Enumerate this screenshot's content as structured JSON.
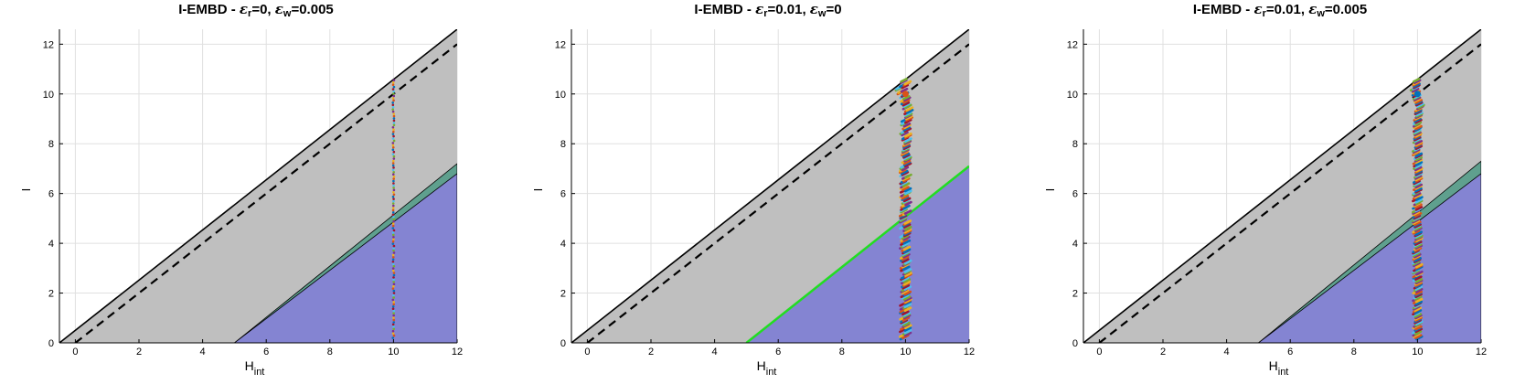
{
  "colors": {
    "gray_region": "#bfbfbf",
    "blue_region": "#8484d2",
    "green_band": "#5fa08e",
    "green_line": "#22dd22",
    "black": "#000000",
    "grid": "#e0e0e0",
    "trajectory_palette": [
      "#0072bd",
      "#d95319",
      "#edb120",
      "#7e2f8e",
      "#77ac30",
      "#4dbeee",
      "#a2142f"
    ]
  },
  "chart_data": [
    {
      "type": "scatter",
      "title_prefix": "I-EMBD - ",
      "title_params": [
        {
          "symbol": "ε",
          "sub": "r",
          "value": "=0"
        },
        {
          "symbol": "ε",
          "sub": "w",
          "value": "=0.005"
        }
      ],
      "xlabel": "H",
      "xlabel_sub": "int",
      "ylabel": "I",
      "xlim": [
        -0.5,
        12
      ],
      "ylim": [
        0,
        12.6
      ],
      "xticks": [
        "0",
        "2",
        "4",
        "6",
        "8",
        "10",
        "12"
      ],
      "yticks": [
        "0",
        "2",
        "4",
        "6",
        "8",
        "10",
        "12"
      ],
      "grid": true,
      "boundary_line": {
        "style": "solid",
        "x": [
          -0.5,
          12
        ],
        "y": [
          0,
          12.6
        ]
      },
      "dashed_line": {
        "style": "dashed",
        "x": [
          0,
          12
        ],
        "y": [
          0,
          12
        ]
      },
      "green_band": {
        "lower": {
          "x": [
            5,
            12
          ],
          "y": [
            0,
            6.8
          ]
        },
        "upper": {
          "x": [
            5,
            12
          ],
          "y": [
            0,
            7.2
          ]
        }
      },
      "blue_region": {
        "x": [
          5,
          12
        ],
        "y": [
          0,
          6.8
        ]
      },
      "trajectories": {
        "x": 10,
        "y_range": [
          0.2,
          10.6
        ],
        "style": "thin",
        "spread": 0.02
      }
    },
    {
      "type": "scatter",
      "title_prefix": "I-EMBD - ",
      "title_params": [
        {
          "symbol": "ε",
          "sub": "r",
          "value": "=0.01"
        },
        {
          "symbol": "ε",
          "sub": "w",
          "value": "=0"
        }
      ],
      "xlabel": "H",
      "xlabel_sub": "int",
      "ylabel": "I",
      "xlim": [
        -0.5,
        12
      ],
      "ylim": [
        0,
        12.6
      ],
      "xticks": [
        "0",
        "2",
        "4",
        "6",
        "8",
        "10",
        "12"
      ],
      "yticks": [
        "0",
        "2",
        "4",
        "6",
        "8",
        "10",
        "12"
      ],
      "grid": true,
      "boundary_line": {
        "style": "solid",
        "x": [
          -0.5,
          12
        ],
        "y": [
          0,
          12.6
        ]
      },
      "dashed_line": {
        "style": "dashed",
        "x": [
          0,
          12
        ],
        "y": [
          0,
          12
        ]
      },
      "green_line": {
        "x": [
          5,
          12
        ],
        "y": [
          0,
          7.1
        ]
      },
      "blue_region": {
        "x": [
          5,
          12
        ],
        "y": [
          0,
          7.1
        ]
      },
      "trajectories": {
        "x": 10,
        "y_range": [
          0.2,
          10.6
        ],
        "style": "thick",
        "spread": 0.09,
        "curl_from": 8.6
      }
    },
    {
      "type": "scatter",
      "title_prefix": "I-EMBD - ",
      "title_params": [
        {
          "symbol": "ε",
          "sub": "r",
          "value": "=0.01"
        },
        {
          "symbol": "ε",
          "sub": "w",
          "value": "=0.005"
        }
      ],
      "xlabel": "H",
      "xlabel_sub": "int",
      "ylabel": "I",
      "xlim": [
        -0.5,
        12
      ],
      "ylim": [
        0,
        12.6
      ],
      "xticks": [
        "0",
        "2",
        "4",
        "6",
        "8",
        "10",
        "12"
      ],
      "yticks": [
        "0",
        "2",
        "4",
        "6",
        "8",
        "10",
        "12"
      ],
      "grid": true,
      "boundary_line": {
        "style": "solid",
        "x": [
          -0.5,
          12
        ],
        "y": [
          0,
          12.6
        ]
      },
      "dashed_line": {
        "style": "dashed",
        "x": [
          0,
          12
        ],
        "y": [
          0,
          12
        ]
      },
      "green_band": {
        "lower": {
          "x": [
            5,
            12
          ],
          "y": [
            0,
            6.8
          ]
        },
        "upper": {
          "x": [
            5,
            12
          ],
          "y": [
            0,
            7.3
          ]
        }
      },
      "blue_region": {
        "x": [
          5,
          12
        ],
        "y": [
          0,
          6.8
        ]
      },
      "trajectories": {
        "x": 10,
        "y_range": [
          0.2,
          10.6
        ],
        "style": "thick",
        "spread": 0.06,
        "curl_from": 8.8
      }
    }
  ]
}
